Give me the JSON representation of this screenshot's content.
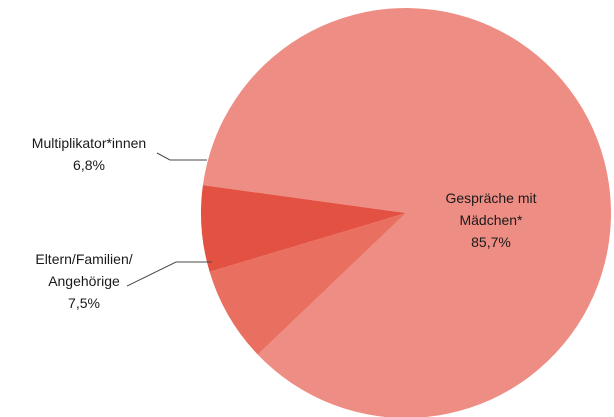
{
  "chart_data": {
    "type": "pie",
    "title": "",
    "slices": [
      {
        "label_lines": [
          "Gespräche mit",
          "Mädchen*"
        ],
        "value_text": "85,7%",
        "value": 85.7,
        "color": "#ee8d83"
      },
      {
        "label_lines": [
          "Eltern/Familien/",
          "Angehörige"
        ],
        "value_text": "7,5%",
        "value": 7.5,
        "color": "#e97061"
      },
      {
        "label_lines": [
          "Multiplikator*innen"
        ],
        "value_text": "6,8%",
        "value": 6.8,
        "color": "#e35142"
      }
    ],
    "legend": "none",
    "leader_line_color": "#4a4a4a"
  }
}
